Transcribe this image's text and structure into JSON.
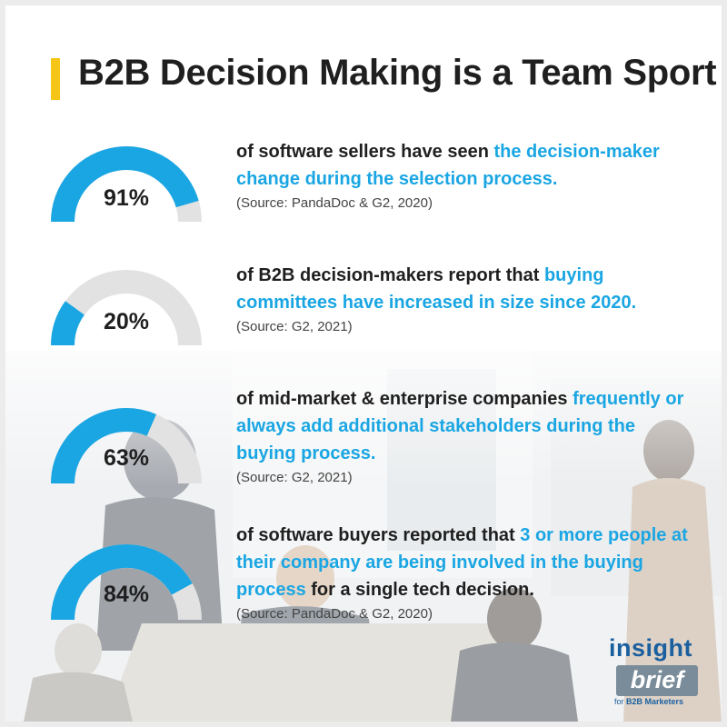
{
  "header": {
    "title": "B2B Decision Making is a Team Sport",
    "accent_color": "#f5c518"
  },
  "chart_data": {
    "type": "gauge",
    "track_color": "#e2e2e2",
    "fill_color": "#1aa6e3",
    "items": [
      {
        "value": 91,
        "label": "91%",
        "text_before": "of software sellers have seen ",
        "highlight": "the decision-maker change during the selection process.",
        "text_after": "",
        "source": "(Source: PandaDoc & G2, 2020)"
      },
      {
        "value": 20,
        "label": "20%",
        "text_before": "of B2B decision-makers report that ",
        "highlight": "buying committees have increased in size since 2020.",
        "text_after": "",
        "source": "(Source: G2, 2021)"
      },
      {
        "value": 63,
        "label": "63%",
        "text_before": "of mid-market & enterprise companies ",
        "highlight": "frequently or always add additional stakeholders during the buying process.",
        "text_after": "",
        "source": "(Source: G2, 2021)"
      },
      {
        "value": 84,
        "label": "84%",
        "text_before": "of software buyers reported that ",
        "highlight": "3 or more people at their company are being involved in the buying process",
        "text_after": " for a single tech decision.",
        "source": "(Source: PandaDoc & G2, 2020)"
      }
    ]
  },
  "logo": {
    "line1": "insight",
    "line2": "brief",
    "line3_prefix": "for ",
    "line3_bold": "B2B Marketers"
  }
}
